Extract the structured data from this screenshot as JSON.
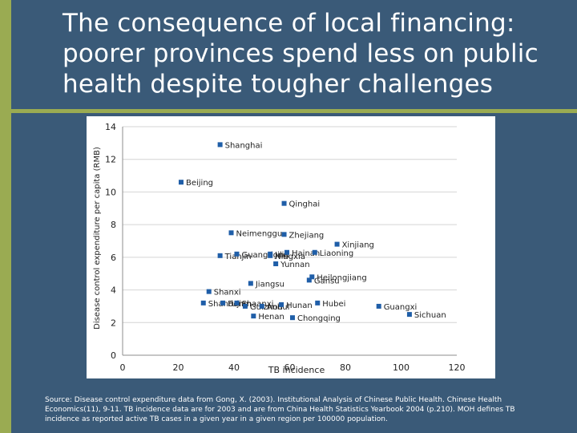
{
  "slide": {
    "title_lines": [
      "The consequence of local financing:",
      "poorer provinces spend less on public",
      "health despite tougher challenges"
    ],
    "source_note": "Source: Disease control expenditure data from Gong, X. (2003). Institutional Analysis of Chinese Public Health. Chinese Health Economics(11), 9-11. TB incidence data are for 2003 and are from China Health Statistics Yearbook 2004 (p.210). MOH defines TB incidence as reported active TB cases in a given year in a given region per 100000 population.",
    "colors": {
      "background": "#3a5a78",
      "accent_stripe": "#9aab52",
      "plot_background": "#ffffff",
      "marker": "#1f5ea8",
      "text": "#1f1f1f"
    }
  },
  "chart_data": {
    "type": "scatter",
    "xlabel": "TB incidence",
    "ylabel": "Disease control expenditure per capita (RMB)",
    "xlim": [
      0,
      120
    ],
    "ylim": [
      0,
      14
    ],
    "xticks": [
      0,
      20,
      40,
      60,
      80,
      100,
      120
    ],
    "yticks": [
      0,
      2,
      4,
      6,
      8,
      10,
      12,
      14
    ],
    "grid": {
      "x": false,
      "y": true
    },
    "legend": "none",
    "points": [
      {
        "label": "Shanghai",
        "x": 35,
        "y": 12.9
      },
      {
        "label": "Beijing",
        "x": 21,
        "y": 10.6
      },
      {
        "label": "Qinghai",
        "x": 58,
        "y": 9.3
      },
      {
        "label": "Neimenggu",
        "x": 39,
        "y": 7.5
      },
      {
        "label": "Zhejiang",
        "x": 58,
        "y": 7.4
      },
      {
        "label": "Xinjiang",
        "x": 77,
        "y": 6.8
      },
      {
        "label": "Tianjin",
        "x": 35,
        "y": 6.1
      },
      {
        "label": "Guangdong",
        "x": 41,
        "y": 6.2
      },
      {
        "label": "Jilin",
        "x": 53,
        "y": 6.2
      },
      {
        "label": "Ningxia",
        "x": 53,
        "y": 6.1
      },
      {
        "label": "Hainan",
        "x": 59,
        "y": 6.3
      },
      {
        "label": "Liaoning",
        "x": 69,
        "y": 6.3
      },
      {
        "label": "Yunnan",
        "x": 55,
        "y": 5.6
      },
      {
        "label": "Heilongjiang",
        "x": 68,
        "y": 4.8
      },
      {
        "label": "Gansu",
        "x": 67,
        "y": 4.6
      },
      {
        "label": "Jiangsu",
        "x": 46,
        "y": 4.4
      },
      {
        "label": "Shanxi",
        "x": 31,
        "y": 3.9
      },
      {
        "label": "Shandong",
        "x": 29,
        "y": 3.2
      },
      {
        "label": "Fujian",
        "x": 36,
        "y": 3.2
      },
      {
        "label": "Shaanxi",
        "x": 41,
        "y": 3.2
      },
      {
        "label": "Guizhou",
        "x": 44,
        "y": 3.0
      },
      {
        "label": "Anhui",
        "x": 50,
        "y": 3.0
      },
      {
        "label": "Hunan",
        "x": 57,
        "y": 3.1
      },
      {
        "label": "Hubei",
        "x": 70,
        "y": 3.2
      },
      {
        "label": "Guangxi",
        "x": 92,
        "y": 3.0
      },
      {
        "label": "Sichuan",
        "x": 103,
        "y": 2.5
      },
      {
        "label": "Henan",
        "x": 47,
        "y": 2.4
      },
      {
        "label": "Chongqing",
        "x": 61,
        "y": 2.3
      }
    ]
  }
}
